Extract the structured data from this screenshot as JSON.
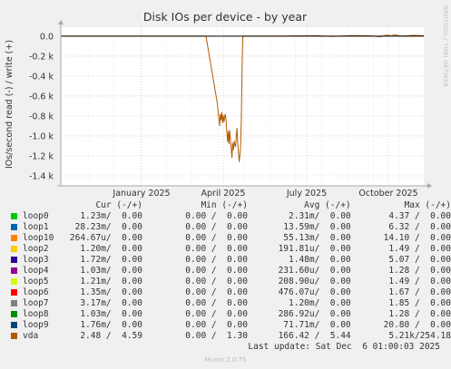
{
  "chart_data": {
    "type": "line",
    "title": "Disk IOs per device - by year",
    "ylabel": "IOs/second read (-) / write (+)",
    "y_ticks": [
      "0.0",
      "-0.2 k",
      "-0.4 k",
      "-0.6 k",
      "-0.8 k",
      "-1.0 k",
      "-1.2 k",
      "-1.4 k"
    ],
    "y_tick_values": [
      0,
      -200,
      -400,
      -600,
      -800,
      -1000,
      -1200,
      -1400
    ],
    "ylim": [
      -1500,
      90
    ],
    "x_ticks": [
      "January 2025",
      "April 2025",
      "July 2025",
      "October 2025"
    ],
    "grid": true,
    "series": [
      {
        "name": "vda",
        "color": "#b35a00",
        "points": [
          [
            0.0,
            0
          ],
          [
            0.35,
            0
          ],
          [
            0.4,
            0
          ],
          [
            0.4315,
            -680
          ],
          [
            0.4335,
            -760
          ],
          [
            0.4355,
            -820
          ],
          [
            0.4375,
            -900
          ],
          [
            0.4395,
            -780
          ],
          [
            0.4415,
            -840
          ],
          [
            0.4435,
            -760
          ],
          [
            0.4455,
            -870
          ],
          [
            0.4475,
            -790
          ],
          [
            0.4495,
            -860
          ],
          [
            0.4515,
            -810
          ],
          [
            0.4535,
            -780
          ],
          [
            0.4555,
            -850
          ],
          [
            0.4575,
            -960
          ],
          [
            0.4595,
            -1060
          ],
          [
            0.4615,
            -950
          ],
          [
            0.4635,
            -1080
          ],
          [
            0.4655,
            -940
          ],
          [
            0.4675,
            -1050
          ],
          [
            0.4695,
            -1120
          ],
          [
            0.4715,
            -1220
          ],
          [
            0.4735,
            -1070
          ],
          [
            0.4755,
            -1140
          ],
          [
            0.4775,
            -1050
          ],
          [
            0.4795,
            -1090
          ],
          [
            0.4815,
            -1110
          ],
          [
            0.4835,
            -1000
          ],
          [
            0.4855,
            -920
          ],
          [
            0.4875,
            -1080
          ],
          [
            0.4895,
            -1170
          ],
          [
            0.4915,
            -1260
          ],
          [
            0.4935,
            -1190
          ],
          [
            0.4955,
            -1100
          ],
          [
            0.4975,
            -820
          ],
          [
            0.4995,
            -300
          ],
          [
            0.5015,
            0
          ],
          [
            0.6,
            0
          ],
          [
            0.7,
            5
          ],
          [
            0.75,
            -3
          ],
          [
            0.8,
            6
          ],
          [
            0.85,
            4
          ],
          [
            0.88,
            -5
          ],
          [
            0.9,
            12
          ],
          [
            0.91,
            3
          ],
          [
            0.92,
            15
          ],
          [
            0.93,
            5
          ],
          [
            0.94,
            2
          ],
          [
            0.97,
            8
          ],
          [
            1.0,
            5
          ]
        ]
      }
    ]
  },
  "side_label": "RRDTOOL / TOBI OETIKER",
  "legend": {
    "headers": {
      "cur": "Cur (-/+)",
      "min": "Min (-/+)",
      "avg": "Avg (-/+)",
      "max": "Max (-/+)"
    },
    "rows": [
      {
        "name": "loop0",
        "color": "#00cc00",
        "cur": "1.23m/  0.00",
        "min": "0.00 /  0.00",
        "avg": "2.31m/  0.00",
        "max": "4.37 /  0.00"
      },
      {
        "name": "loop1",
        "color": "#0066b3",
        "cur": "28.23m/  0.00",
        "min": "0.00 /  0.00",
        "avg": "13.59m/  0.00",
        "max": "6.32 /  0.00"
      },
      {
        "name": "loop10",
        "color": "#ff8000",
        "cur": "264.67u/  0.00",
        "min": "0.00 /  0.00",
        "avg": "55.13m/  0.00",
        "max": "14.10 /  0.00"
      },
      {
        "name": "loop2",
        "color": "#ffcc00",
        "cur": "1.20m/  0.00",
        "min": "0.00 /  0.00",
        "avg": "191.81u/  0.00",
        "max": "1.49 /  0.00"
      },
      {
        "name": "loop3",
        "color": "#330099",
        "cur": "1.72m/  0.00",
        "min": "0.00 /  0.00",
        "avg": "1.48m/  0.00",
        "max": "5.07 /  0.00"
      },
      {
        "name": "loop4",
        "color": "#990099",
        "cur": "1.03m/  0.00",
        "min": "0.00 /  0.00",
        "avg": "231.60u/  0.00",
        "max": "1.28 /  0.00"
      },
      {
        "name": "loop5",
        "color": "#ccff00",
        "cur": "1.21m/  0.00",
        "min": "0.00 /  0.00",
        "avg": "208.90u/  0.00",
        "max": "1.49 /  0.00"
      },
      {
        "name": "loop6",
        "color": "#ff0000",
        "cur": "1.35m/  0.00",
        "min": "0.00 /  0.00",
        "avg": "476.07u/  0.00",
        "max": "1.67 /  0.00"
      },
      {
        "name": "loop7",
        "color": "#808080",
        "cur": "3.17m/  0.00",
        "min": "0.00 /  0.00",
        "avg": "1.20m/  0.00",
        "max": "1.85 /  0.00"
      },
      {
        "name": "loop8",
        "color": "#008f00",
        "cur": "1.03m/  0.00",
        "min": "0.00 /  0.00",
        "avg": "286.92u/  0.00",
        "max": "1.28 /  0.00"
      },
      {
        "name": "loop9",
        "color": "#00487d",
        "cur": "1.76m/  0.00",
        "min": "0.00 /  0.00",
        "avg": "71.71m/  0.00",
        "max": "20.80 /  0.00"
      },
      {
        "name": "vda",
        "color": "#b35a00",
        "cur": "2.48 /  4.59",
        "min": "0.00 /  1.30",
        "avg": "166.42 /  5.44",
        "max": "5.21k/254.18"
      }
    ]
  },
  "last_update": "Last update: Sat Dec  6 01:00:03 2025",
  "footer": "Munin 2.0.75"
}
